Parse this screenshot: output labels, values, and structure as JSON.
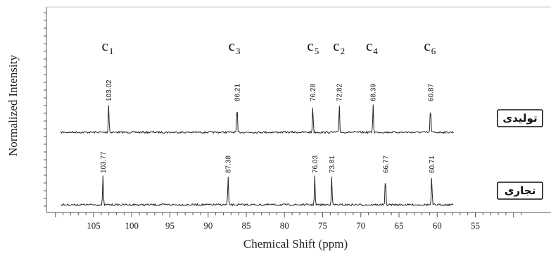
{
  "chart_data": {
    "type": "line",
    "title": "",
    "xlabel": "Chemical Shift (ppm)",
    "ylabel": "Normalized Intensity",
    "xlim": [
      110,
      49
    ],
    "x_reversed": true,
    "x_ticks": [
      105,
      100,
      95,
      90,
      85,
      80,
      75,
      70,
      65,
      60,
      55
    ],
    "grid": false,
    "carbon_labels": [
      {
        "base": "C",
        "sub": "1",
        "x": 103.2
      },
      {
        "base": "C",
        "sub": "3",
        "x": 86.6
      },
      {
        "base": "C",
        "sub": "5",
        "x": 76.3
      },
      {
        "base": "C",
        "sub": "2",
        "x": 72.9
      },
      {
        "base": "C",
        "sub": "4",
        "x": 68.6
      },
      {
        "base": "C",
        "sub": "6",
        "x": 61.0
      }
    ],
    "series": [
      {
        "name": "تولیدی",
        "baseline": 0.55,
        "peaks": [
          {
            "x": 103.02,
            "label": "103.02",
            "height": 0.38
          },
          {
            "x": 86.21,
            "label": "86.21",
            "height": 0.36
          },
          {
            "x": 76.28,
            "label": "76.28",
            "height": 0.36
          },
          {
            "x": 72.82,
            "label": "72.82",
            "height": 0.36
          },
          {
            "x": 68.39,
            "label": "68.39",
            "height": 0.36
          },
          {
            "x": 60.87,
            "label": "60.87",
            "height": 0.36
          }
        ]
      },
      {
        "name": "تجاری",
        "baseline": 0.0,
        "peaks": [
          {
            "x": 103.77,
            "label": "103.77",
            "height": 0.38
          },
          {
            "x": 87.38,
            "label": "87.38",
            "height": 0.38
          },
          {
            "x": 76.03,
            "label": "76.03",
            "height": 0.36
          },
          {
            "x": 73.81,
            "label": "73.81",
            "height": 0.36
          },
          {
            "x": 66.77,
            "label": "66.77",
            "height": 0.36
          },
          {
            "x": 60.71,
            "label": "60.71",
            "height": 0.36
          }
        ]
      }
    ],
    "colors": {
      "trace": "#222222",
      "axis": "#555555",
      "label_box_border": "#111111"
    }
  }
}
